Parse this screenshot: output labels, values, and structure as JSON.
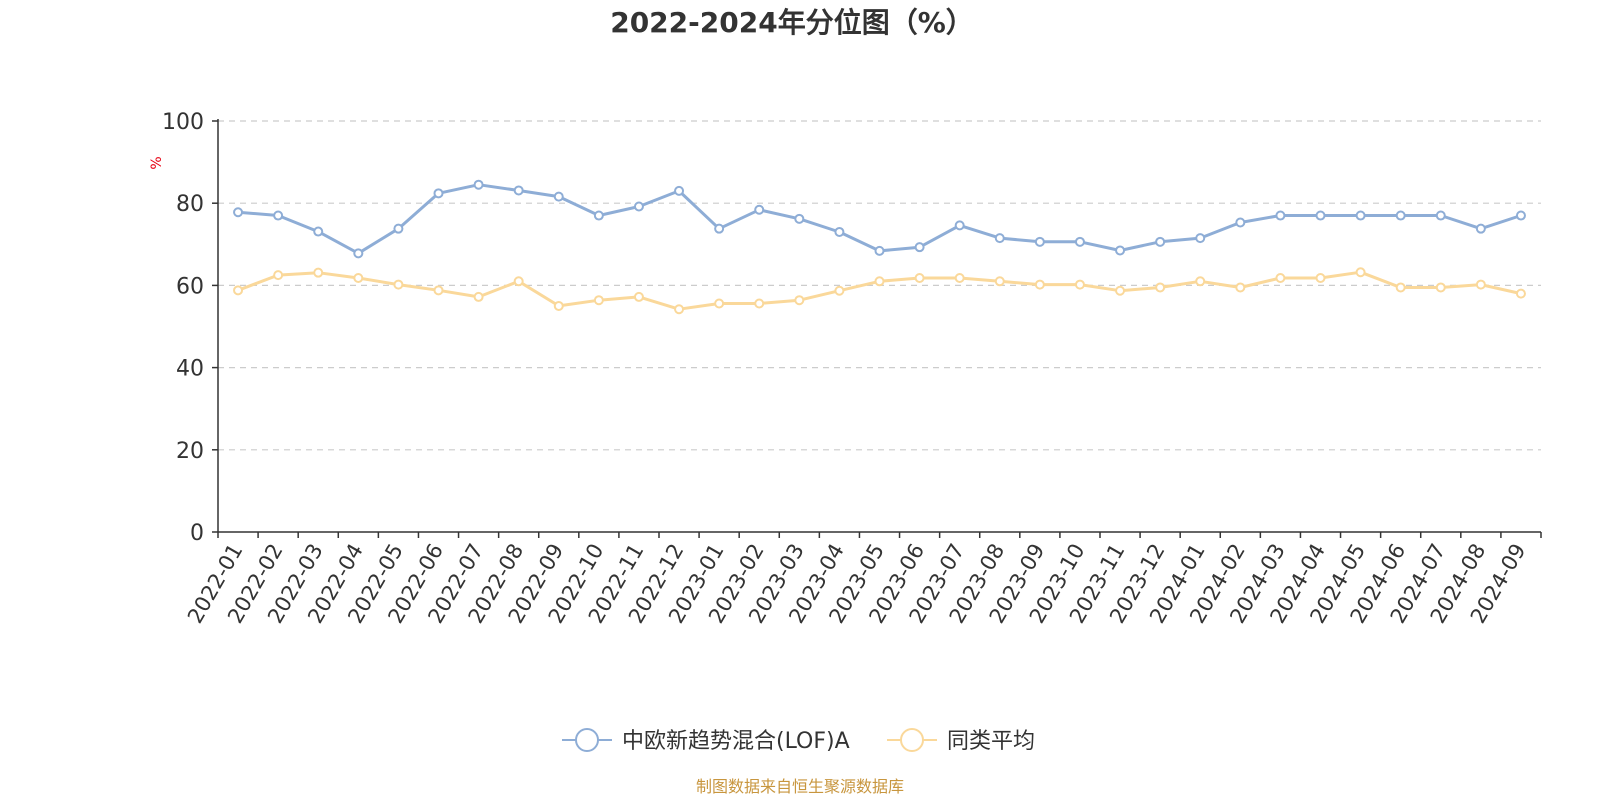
{
  "chart_data": {
    "type": "line",
    "title": "2022-2024年分位图（%）",
    "ylabel": "%",
    "xlabel": "",
    "ylim": [
      0,
      100
    ],
    "yticks": [
      0,
      20,
      40,
      60,
      80,
      100
    ],
    "grid": "horizontal dashed",
    "legend_position": "bottom-center",
    "categories": [
      "2022-01",
      "2022-02",
      "2022-03",
      "2022-04",
      "2022-05",
      "2022-06",
      "2022-07",
      "2022-08",
      "2022-09",
      "2022-10",
      "2022-11",
      "2022-12",
      "2023-01",
      "2023-02",
      "2023-03",
      "2023-04",
      "2023-05",
      "2023-06",
      "2023-07",
      "2023-08",
      "2023-09",
      "2023-10",
      "2023-11",
      "2023-12",
      "2024-01",
      "2024-02",
      "2024-03",
      "2024-04",
      "2024-05",
      "2024-06",
      "2024-07",
      "2024-08",
      "2024-09"
    ],
    "series": [
      {
        "name": "中欧新趋势混合(LOF)A",
        "color": "#8eadd6",
        "values": [
          77.8,
          77,
          73.1,
          67.8,
          73.8,
          82.4,
          84.5,
          83.1,
          81.6,
          77,
          79.2,
          83,
          73.8,
          78.4,
          76.2,
          73,
          68.4,
          69.3,
          74.6,
          71.5,
          70.6,
          70.6,
          68.5,
          70.6,
          71.5,
          75.3,
          77,
          77,
          77,
          77,
          77,
          73.8,
          77
        ]
      },
      {
        "name": "同类平均",
        "color": "#fad89a",
        "values": [
          58.8,
          62.5,
          63.1,
          61.8,
          60.2,
          58.8,
          57.2,
          61,
          55,
          56.4,
          57.2,
          54.2,
          55.6,
          55.6,
          56.4,
          58.7,
          61,
          61.8,
          61.8,
          61,
          60.2,
          60.2,
          58.7,
          59.5,
          61,
          59.5,
          61.8,
          61.8,
          63.2,
          59.5,
          59.5,
          60.2,
          58
        ]
      }
    ],
    "source": "制图数据来自恒生聚源数据库"
  }
}
